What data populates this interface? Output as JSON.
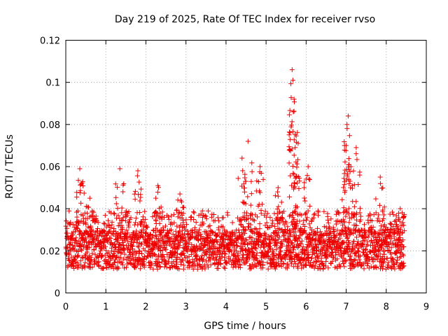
{
  "chart_data": {
    "type": "scatter",
    "title": "Day 219 of 2025, Rate Of TEC Index for receiver rvso",
    "xlabel": "GPS time / hours",
    "ylabel": "ROTI / TECUs",
    "xlim": [
      0,
      9
    ],
    "ylim": [
      0,
      0.12
    ],
    "xticks": [
      0,
      1,
      2,
      3,
      4,
      5,
      6,
      7,
      8,
      9
    ],
    "yticks": [
      0,
      0.02,
      0.04,
      0.06,
      0.08,
      0.1,
      0.12
    ],
    "xtick_labels": [
      "0",
      "1",
      "2",
      "3",
      "4",
      "5",
      "6",
      "7",
      "8",
      "9"
    ],
    "ytick_labels": [
      "0",
      "0.02",
      "0.04",
      "0.06",
      "0.08",
      "0.1",
      "0.12"
    ],
    "grid": true,
    "marker": "+",
    "marker_color": "#ee0000",
    "series": [
      {
        "name": "ROTI",
        "x_range": [
          0,
          8.45
        ],
        "baseline_band": [
          0.008,
          0.03
        ],
        "peaks": [
          {
            "x": 0.35,
            "y": 0.059
          },
          {
            "x": 0.6,
            "y": 0.045
          },
          {
            "x": 1.35,
            "y": 0.059
          },
          {
            "x": 1.8,
            "y": 0.058
          },
          {
            "x": 2.3,
            "y": 0.051
          },
          {
            "x": 2.85,
            "y": 0.047
          },
          {
            "x": 4.4,
            "y": 0.064
          },
          {
            "x": 4.55,
            "y": 0.072
          },
          {
            "x": 4.85,
            "y": 0.06
          },
          {
            "x": 5.3,
            "y": 0.05
          },
          {
            "x": 5.65,
            "y": 0.106
          },
          {
            "x": 5.67,
            "y": 0.101
          },
          {
            "x": 5.7,
            "y": 0.092
          },
          {
            "x": 5.68,
            "y": 0.086
          },
          {
            "x": 5.8,
            "y": 0.071
          },
          {
            "x": 6.05,
            "y": 0.06
          },
          {
            "x": 7.05,
            "y": 0.084
          },
          {
            "x": 7.02,
            "y": 0.08
          },
          {
            "x": 7.0,
            "y": 0.07
          },
          {
            "x": 7.25,
            "y": 0.069
          },
          {
            "x": 7.85,
            "y": 0.055
          },
          {
            "x": 8.35,
            "y": 0.04
          }
        ]
      }
    ]
  }
}
